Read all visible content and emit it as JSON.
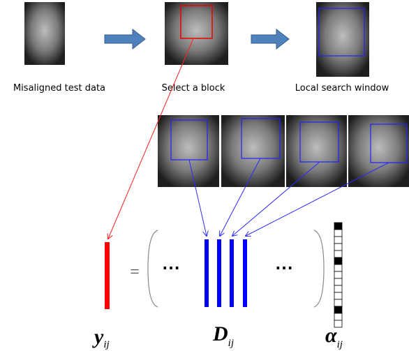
{
  "captions": [
    "Misaligned test data",
    "Select a block",
    "Local search window"
  ],
  "equation": {
    "lhs": {
      "symbol": "y",
      "subscript": "ij"
    },
    "equals": "=",
    "ellipses": [
      "⋯",
      "⋯"
    ],
    "dictionary": {
      "symbol": "D",
      "subscript": "ij"
    },
    "coefficients": {
      "symbol": "α",
      "subscript": "ij"
    }
  }
}
